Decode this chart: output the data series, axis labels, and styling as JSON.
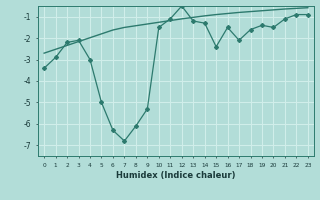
{
  "xlabel": "Humidex (Indice chaleur)",
  "x": [
    0,
    1,
    2,
    3,
    4,
    5,
    6,
    7,
    8,
    9,
    10,
    11,
    12,
    13,
    14,
    15,
    16,
    17,
    18,
    19,
    20,
    21,
    22,
    23
  ],
  "y_curve": [
    -3.4,
    -2.9,
    -2.2,
    -2.1,
    -3.0,
    -5.0,
    -6.3,
    -6.8,
    -6.1,
    -5.3,
    -1.5,
    -1.1,
    -0.5,
    -1.2,
    -1.3,
    -2.4,
    -1.5,
    -2.1,
    -1.6,
    -1.4,
    -1.5,
    -1.1,
    -0.9,
    -0.9
  ],
  "y_trend": [
    -2.7,
    -2.52,
    -2.34,
    -2.16,
    -1.98,
    -1.8,
    -1.62,
    -1.5,
    -1.42,
    -1.34,
    -1.26,
    -1.18,
    -1.1,
    -1.03,
    -0.96,
    -0.9,
    -0.85,
    -0.8,
    -0.76,
    -0.72,
    -0.68,
    -0.64,
    -0.61,
    -0.58
  ],
  "line_color": "#2d7a6e",
  "bg_color": "#b2ddd8",
  "grid_color": "#d0eeea",
  "ylim": [
    -7.5,
    -0.5
  ],
  "yticks": [
    -7,
    -6,
    -5,
    -4,
    -3,
    -2,
    -1
  ],
  "xlim": [
    -0.5,
    23.5
  ]
}
